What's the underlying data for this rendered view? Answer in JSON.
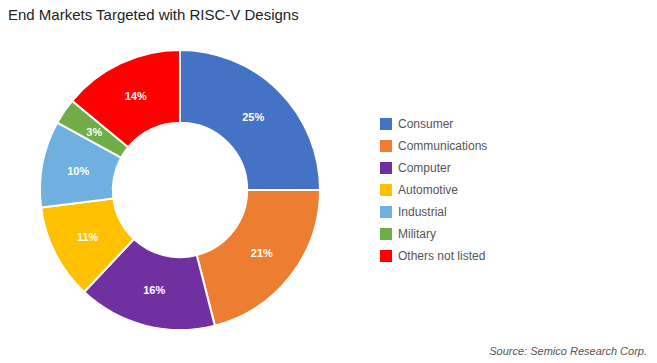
{
  "chart_data": {
    "type": "donut",
    "title": "End Markets Targeted with RISC-V Designs",
    "categories": [
      "Consumer",
      "Communications",
      "Computer",
      "Automotive",
      "Industrial",
      "Military",
      "Others not listed"
    ],
    "values": [
      25,
      21,
      16,
      11,
      10,
      3,
      14
    ],
    "value_labels": [
      "25%",
      "21%",
      "16%",
      "11%",
      "10%",
      "3%",
      "14%"
    ],
    "colors": [
      "#4472C4",
      "#ED7D31",
      "#7030A0",
      "#FFC000",
      "#70B0E0",
      "#70AD47",
      "#FF0000"
    ],
    "data_labels": true,
    "legend": "right",
    "annotations": [
      "Source: Semico Research Corp."
    ]
  }
}
